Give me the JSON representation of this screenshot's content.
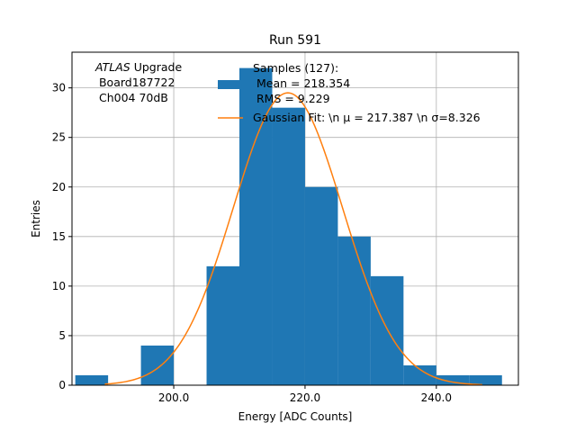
{
  "chart_data": {
    "type": "bar",
    "title": "Run 591",
    "xlabel": "Energy [ADC Counts]",
    "ylabel": "Entries",
    "xlim": [
      184.5,
      252.5
    ],
    "ylim": [
      0,
      33.6
    ],
    "xticks": [
      200.0,
      220.0,
      240.0
    ],
    "xtick_labels": [
      "200.0",
      "220.0",
      "240.0"
    ],
    "yticks": [
      0,
      5,
      10,
      15,
      20,
      25,
      30
    ],
    "ytick_labels": [
      "0",
      "5",
      "10",
      "15",
      "20",
      "25",
      "30"
    ],
    "grid": true,
    "bar_color": "#1f77b4",
    "fit_color": "#ff7f0e",
    "bins": [
      {
        "x0": 185,
        "x1": 190,
        "count": 1
      },
      {
        "x0": 190,
        "x1": 195,
        "count": 0
      },
      {
        "x0": 195,
        "x1": 200,
        "count": 4
      },
      {
        "x0": 200,
        "x1": 205,
        "count": 0
      },
      {
        "x0": 205,
        "x1": 210,
        "count": 12
      },
      {
        "x0": 210,
        "x1": 215,
        "count": 32
      },
      {
        "x0": 215,
        "x1": 220,
        "count": 28
      },
      {
        "x0": 220,
        "x1": 225,
        "count": 20
      },
      {
        "x0": 225,
        "x1": 230,
        "count": 15
      },
      {
        "x0": 230,
        "x1": 235,
        "count": 11
      },
      {
        "x0": 235,
        "x1": 240,
        "count": 2
      },
      {
        "x0": 240,
        "x1": 245,
        "count": 1
      },
      {
        "x0": 245,
        "x1": 250,
        "count": 1
      }
    ],
    "fit": {
      "mu": 217.387,
      "sigma": 8.326,
      "amplitude": 29.5,
      "range": [
        189.5,
        247
      ]
    },
    "annotation": {
      "italic": "ATLAS",
      "rest": " Upgrade",
      "line2": " Board187722",
      "line3": " Ch004 70dB"
    },
    "legend": {
      "position": "top-right",
      "samples_line1": "Samples (127):",
      "samples_line2": " Mean = 218.354",
      "samples_line3": " RMS = 9.229",
      "fit_label": "Gaussian Fit: \\n μ = 217.387 \\n σ=8.326"
    }
  }
}
